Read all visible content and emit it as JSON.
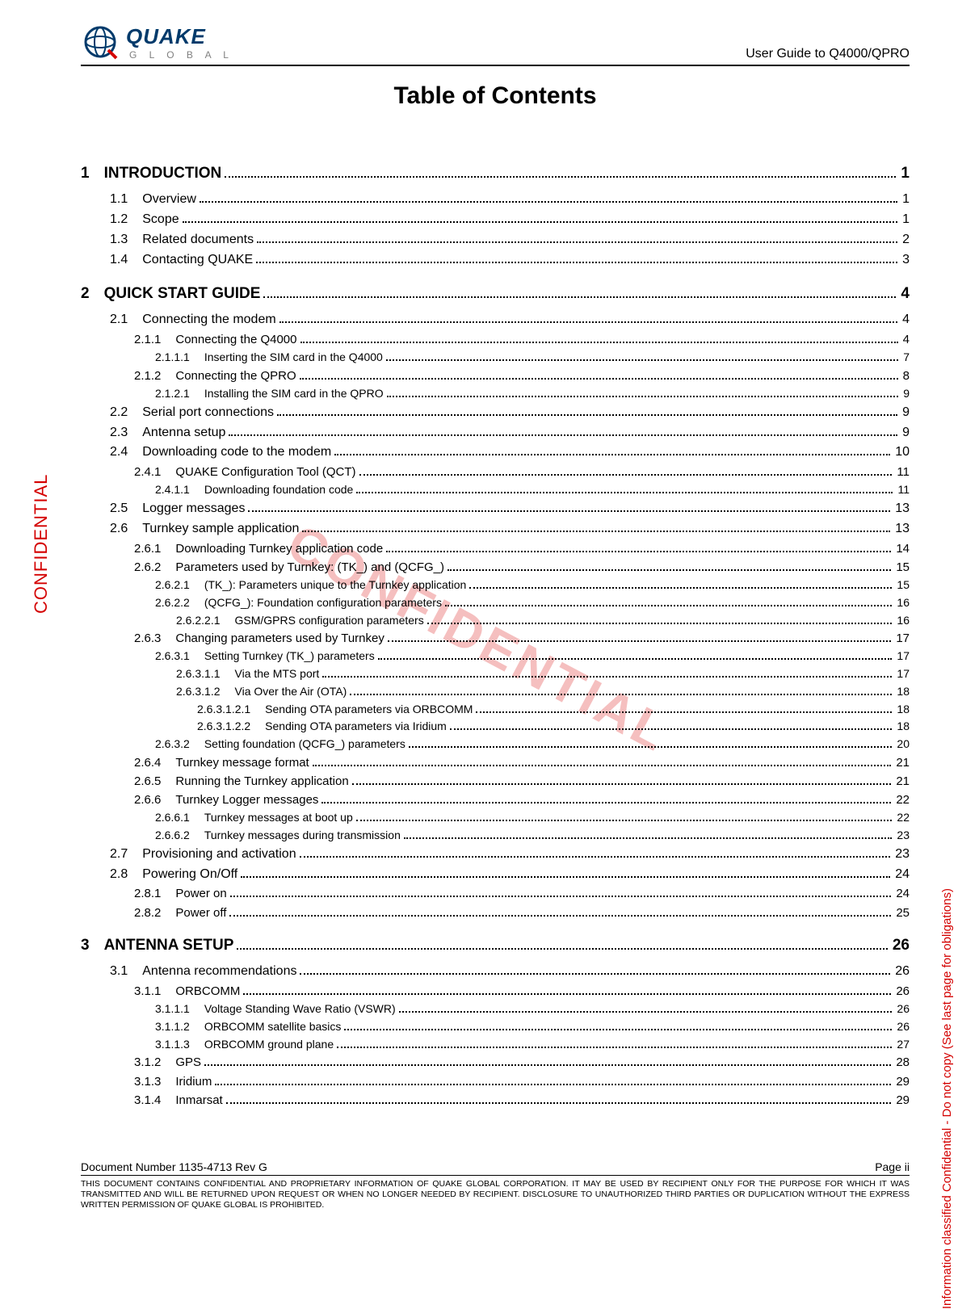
{
  "header": {
    "logo_main": "QUAKE",
    "logo_sub": "G L O B A L",
    "right_text": "User Guide to Q4000/QPRO"
  },
  "title": "Table of Contents",
  "watermark": "CONFIDENTIAL",
  "side_left": "CONFIDENTIAL",
  "side_right": "Information classified Confidential - Do not copy (See last page for obligations)",
  "footer": {
    "doc_number": "Document Number 1135-4713   Rev G",
    "page_label": "Page ii",
    "legal": "THIS DOCUMENT CONTAINS CONFIDENTIAL AND PROPRIETARY INFORMATION OF QUAKE GLOBAL CORPORATION.  IT MAY BE USED BY RECIPIENT ONLY FOR THE PURPOSE FOR WHICH IT WAS TRANSMITTED AND WILL BE RETURNED UPON REQUEST OR WHEN NO LONGER NEEDED BY RECIPIENT.  DISCLOSURE TO UNAUTHORIZED THIRD PARTIES OR DUPLICATION WITHOUT THE EXPRESS WRITTEN PERMISSION OF QUAKE GLOBAL IS PROHIBITED."
  },
  "toc": [
    {
      "level": 0,
      "num": "1",
      "label": "INTRODUCTION",
      "page": "1"
    },
    {
      "level": 1,
      "num": "1.1",
      "label": "Overview",
      "page": "1"
    },
    {
      "level": 1,
      "num": "1.2",
      "label": "Scope",
      "page": "1"
    },
    {
      "level": 1,
      "num": "1.3",
      "label": "Related documents",
      "page": "2"
    },
    {
      "level": 1,
      "num": "1.4",
      "label": "Contacting QUAKE",
      "page": "3"
    },
    {
      "level": 0,
      "num": "2",
      "label": "QUICK START GUIDE",
      "page": "4"
    },
    {
      "level": 1,
      "num": "2.1",
      "label": "Connecting the modem",
      "page": "4"
    },
    {
      "level": 2,
      "num": "2.1.1",
      "label": "Connecting the Q4000",
      "page": "4"
    },
    {
      "level": 3,
      "num": "2.1.1.1",
      "label": "Inserting the SIM card in the Q4000",
      "page": "7"
    },
    {
      "level": 2,
      "num": "2.1.2",
      "label": "Connecting the QPRO",
      "page": "8"
    },
    {
      "level": 3,
      "num": "2.1.2.1",
      "label": "Installing the SIM card in the QPRO",
      "page": "9"
    },
    {
      "level": 1,
      "num": "2.2",
      "label": "Serial port connections",
      "page": "9"
    },
    {
      "level": 1,
      "num": "2.3",
      "label": "Antenna setup",
      "page": "9"
    },
    {
      "level": 1,
      "num": "2.4",
      "label": "Downloading code to the modem",
      "page": "10"
    },
    {
      "level": 2,
      "num": "2.4.1",
      "label": "QUAKE Configuration Tool (QCT)",
      "page": "11"
    },
    {
      "level": 3,
      "num": "2.4.1.1",
      "label": "Downloading foundation code",
      "page": "11"
    },
    {
      "level": 1,
      "num": "2.5",
      "label": "Logger messages",
      "page": "13"
    },
    {
      "level": 1,
      "num": "2.6",
      "label": "Turnkey sample application",
      "page": "13"
    },
    {
      "level": 2,
      "num": "2.6.1",
      "label": "Downloading Turnkey application code",
      "page": "14"
    },
    {
      "level": 2,
      "num": "2.6.2",
      "label": "Parameters used by Turnkey: (TK_) and (QCFG_)",
      "page": "15"
    },
    {
      "level": 3,
      "num": "2.6.2.1",
      "label": "(TK_): Parameters unique to the Turnkey application",
      "page": "15"
    },
    {
      "level": 3,
      "num": "2.6.2.2",
      "label": "(QCFG_): Foundation configuration parameters",
      "page": "16"
    },
    {
      "level": 4,
      "num": "2.6.2.2.1",
      "label": "GSM/GPRS configuration parameters",
      "page": "16"
    },
    {
      "level": 2,
      "num": "2.6.3",
      "label": "Changing parameters used by Turnkey",
      "page": "17"
    },
    {
      "level": 3,
      "num": "2.6.3.1",
      "label": "Setting Turnkey (TK_) parameters",
      "page": "17"
    },
    {
      "level": 4,
      "num": "2.6.3.1.1",
      "label": "Via the MTS port",
      "page": "17"
    },
    {
      "level": 4,
      "num": "2.6.3.1.2",
      "label": "Via Over the Air (OTA)",
      "page": "18"
    },
    {
      "level": 5,
      "num": "2.6.3.1.2.1",
      "label": "Sending OTA parameters via ORBCOMM",
      "page": "18"
    },
    {
      "level": 5,
      "num": "2.6.3.1.2.2",
      "label": "Sending OTA parameters via Iridium",
      "page": "18"
    },
    {
      "level": 3,
      "num": "2.6.3.2",
      "label": "Setting foundation (QCFG_) parameters",
      "page": "20"
    },
    {
      "level": 2,
      "num": "2.6.4",
      "label": "Turnkey message format",
      "page": "21"
    },
    {
      "level": 2,
      "num": "2.6.5",
      "label": "Running the Turnkey application",
      "page": "21"
    },
    {
      "level": 2,
      "num": "2.6.6",
      "label": "Turnkey Logger messages",
      "page": "22"
    },
    {
      "level": 3,
      "num": "2.6.6.1",
      "label": "Turnkey messages at boot up",
      "page": "22"
    },
    {
      "level": 3,
      "num": "2.6.6.2",
      "label": "Turnkey messages during transmission",
      "page": "23"
    },
    {
      "level": 1,
      "num": "2.7",
      "label": "Provisioning and activation",
      "page": "23"
    },
    {
      "level": 1,
      "num": "2.8",
      "label": "Powering On/Off",
      "page": "24"
    },
    {
      "level": 2,
      "num": "2.8.1",
      "label": "Power on",
      "page": "24"
    },
    {
      "level": 2,
      "num": "2.8.2",
      "label": "Power off",
      "page": "25"
    },
    {
      "level": 0,
      "num": "3",
      "label": "ANTENNA SETUP",
      "page": "26"
    },
    {
      "level": 1,
      "num": "3.1",
      "label": "Antenna recommendations",
      "page": "26"
    },
    {
      "level": 2,
      "num": "3.1.1",
      "label": "ORBCOMM",
      "page": "26"
    },
    {
      "level": 3,
      "num": "3.1.1.1",
      "label": "Voltage Standing Wave Ratio (VSWR)",
      "page": "26"
    },
    {
      "level": 3,
      "num": "3.1.1.2",
      "label": "ORBCOMM satellite basics",
      "page": "26"
    },
    {
      "level": 3,
      "num": "3.1.1.3",
      "label": "ORBCOMM ground plane",
      "page": "27"
    },
    {
      "level": 2,
      "num": "3.1.2",
      "label": "GPS",
      "page": "28"
    },
    {
      "level": 2,
      "num": "3.1.3",
      "label": "Iridium",
      "page": "29"
    },
    {
      "level": 2,
      "num": "3.1.4",
      "label": "Inmarsat",
      "page": "29"
    }
  ],
  "colors": {
    "text": "#000000",
    "accent_red": "#d40000",
    "logo_blue": "#003a6b",
    "logo_gray": "#808080",
    "background": "#ffffff"
  },
  "typography": {
    "title_fontsize": 30,
    "lvl0_fontsize": 19,
    "lvl1_fontsize": 16,
    "lvl2_fontsize": 15,
    "lvl3_fontsize": 14,
    "footer_fontsize": 14,
    "legal_fontsize": 10.5,
    "font_family": "Arial"
  }
}
